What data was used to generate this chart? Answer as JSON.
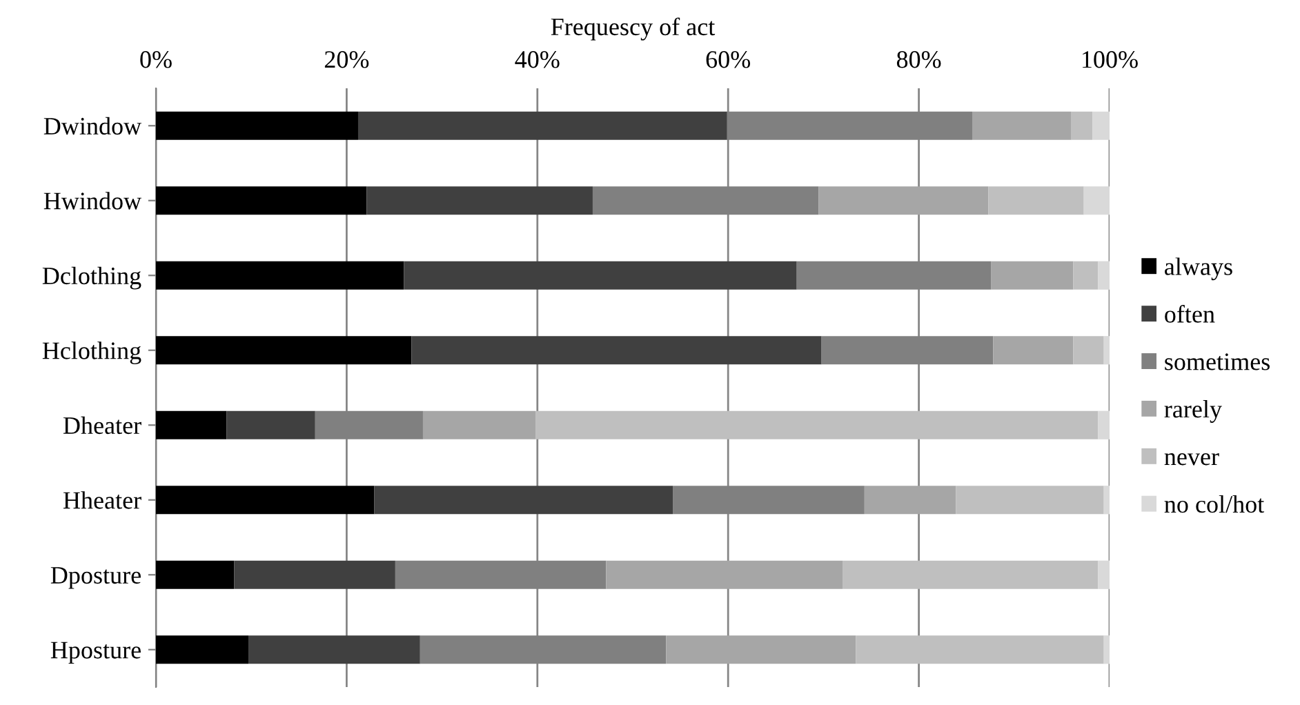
{
  "chart_data": {
    "type": "bar",
    "orientation": "horizontal",
    "stacked": true,
    "xlabel": "Frequescy of act",
    "categories": [
      "Dwindow",
      "Hwindow",
      "Dclothing",
      "Hclothing",
      "Dheater",
      "Hheater",
      "Dposture",
      "Hposture"
    ],
    "series": [
      {
        "name": "always",
        "color": "#000000",
        "values": [
          21.2,
          22.1,
          26.0,
          26.8,
          7.4,
          22.9,
          8.2,
          9.7
        ]
      },
      {
        "name": "often",
        "color": "#404040",
        "values": [
          38.7,
          23.7,
          41.2,
          43.0,
          9.3,
          31.3,
          16.9,
          18.0
        ]
      },
      {
        "name": "sometimes",
        "color": "#808080",
        "values": [
          25.7,
          23.7,
          20.4,
          18.0,
          11.3,
          20.1,
          22.1,
          25.8
        ]
      },
      {
        "name": "rarely",
        "color": "#a6a6a6",
        "values": [
          10.4,
          17.8,
          8.6,
          8.4,
          11.8,
          9.6,
          24.8,
          19.9
        ]
      },
      {
        "name": "never",
        "color": "#bfbfbf",
        "values": [
          2.2,
          10.0,
          2.6,
          3.2,
          59.0,
          15.5,
          26.8,
          26.0
        ]
      },
      {
        "name": "no col/hot",
        "color": "#d9d9d9",
        "values": [
          1.8,
          2.7,
          1.2,
          0.6,
          1.2,
          0.6,
          1.2,
          0.6
        ]
      }
    ],
    "xlim": [
      0,
      100
    ],
    "xticks": [
      {
        "value": 0,
        "label": "0%"
      },
      {
        "value": 20,
        "label": "20%"
      },
      {
        "value": 40,
        "label": "40%"
      },
      {
        "value": 60,
        "label": "60%"
      },
      {
        "value": 80,
        "label": "80%"
      },
      {
        "value": 100,
        "label": "100%"
      }
    ],
    "grid": "x",
    "legend": "right"
  }
}
